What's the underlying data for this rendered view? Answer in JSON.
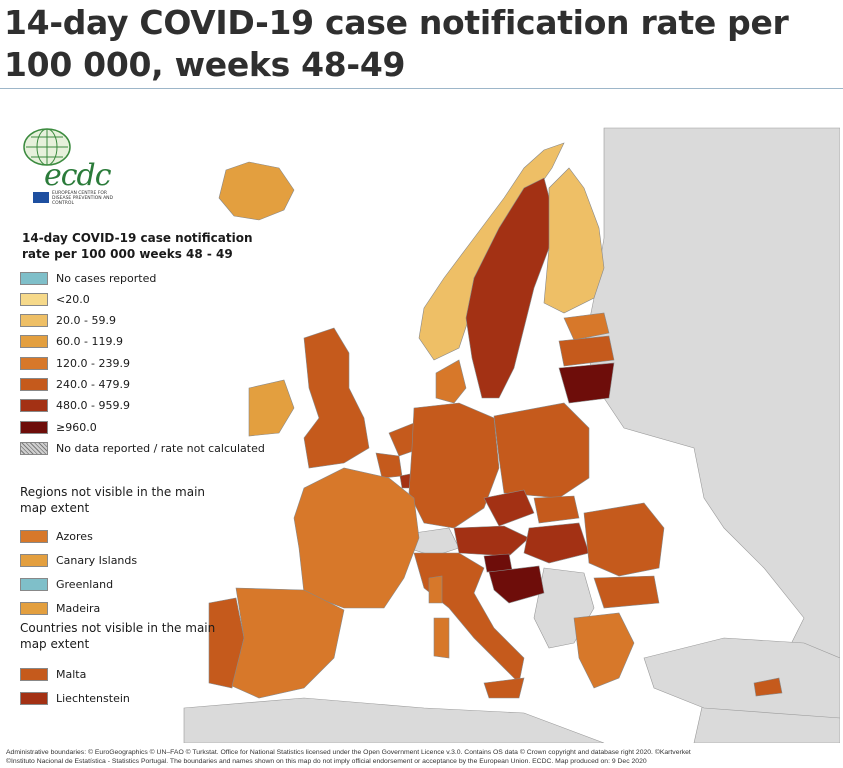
{
  "title": "14-day COVID-19 case notification rate per 100 000, weeks 48-49",
  "logo": {
    "name": "ecdc",
    "subtitle": "EUROPEAN CENTRE FOR DISEASE PREVENTION AND CONTROL"
  },
  "legend": {
    "title": "14-day COVID-19 case notification rate per 100 000 weeks 48 - 49",
    "items": [
      {
        "label": "No cases reported",
        "color": "#7fbfc9"
      },
      {
        "label": "<20.0",
        "color": "#f6d98a"
      },
      {
        "label": "20.0 - 59.9",
        "color": "#eebf66"
      },
      {
        "label": "60.0 - 119.9",
        "color": "#e39f3f"
      },
      {
        "label": "120.0 - 239.9",
        "color": "#d7782a"
      },
      {
        "label": "240.0 - 479.9",
        "color": "#c55a1c"
      },
      {
        "label": "480.0 - 959.9",
        "color": "#a33114"
      },
      {
        "label": "≥960.0",
        "color": "#6e0d0a"
      },
      {
        "label": "No data reported / rate not calculated",
        "color": "#c9c9c9"
      }
    ]
  },
  "regions_not_visible": {
    "title": "Regions not visible in the main map extent",
    "items": [
      {
        "label": "Azores",
        "color": "#d7782a"
      },
      {
        "label": "Canary Islands",
        "color": "#e39f3f"
      },
      {
        "label": "Greenland",
        "color": "#7fbfc9"
      },
      {
        "label": "Madeira",
        "color": "#e39f3f"
      }
    ]
  },
  "countries_not_visible": {
    "title": "Countries not visible in the main map extent",
    "items": [
      {
        "label": "Malta",
        "color": "#c55a1c"
      },
      {
        "label": "Liechtenstein",
        "color": "#a33114"
      }
    ]
  },
  "footer": {
    "line1": "Administrative boundaries: © EuroGeographics © UN–FAO © Turkstat. Office for National Statistics licensed under the Open Government Licence v.3.0. Contains OS data © Crown copyright and database right 2020. ©Kartverket",
    "line2": "©Instituto Nacional de Estatística - Statistics Portugal. The boundaries and names shown on this map do not imply official endorsement or acceptance by the European Union. ECDC. Map produced on: 9 Dec 2020"
  }
}
